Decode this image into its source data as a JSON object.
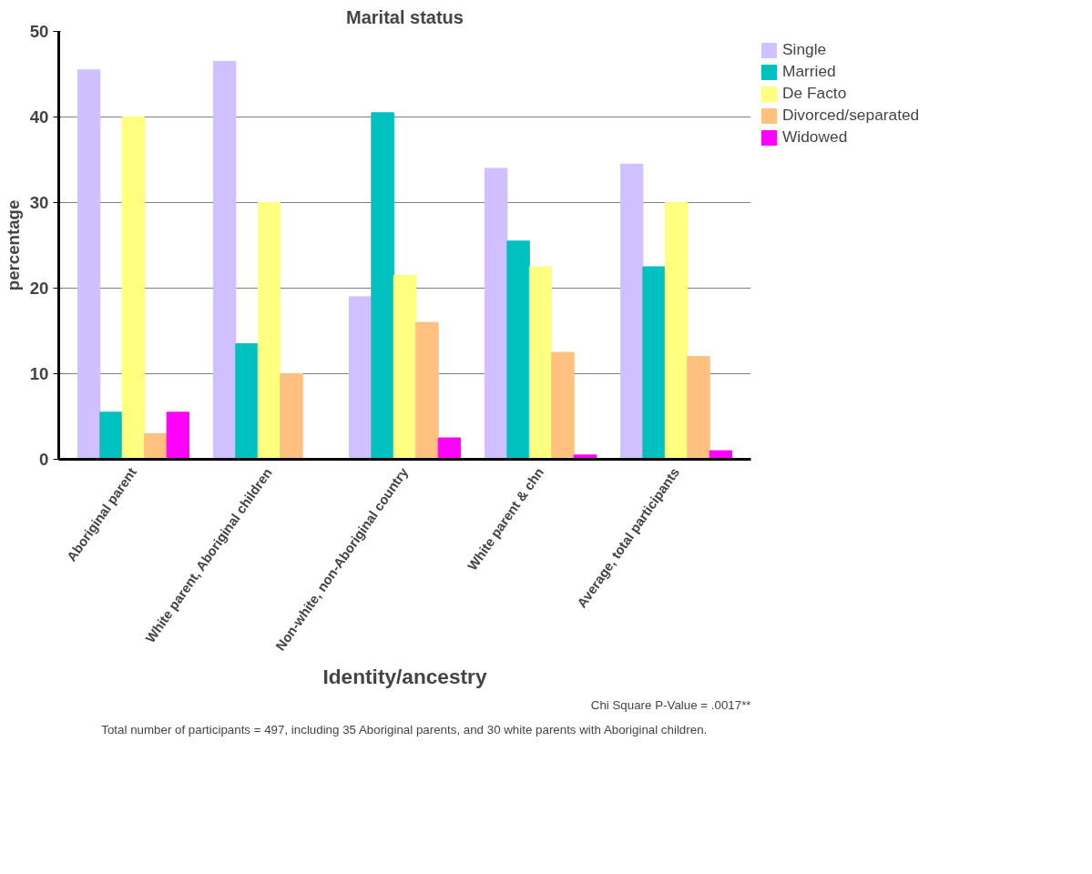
{
  "chart_data": {
    "type": "bar",
    "title": "Marital status",
    "xlabel": "Identity/ancestry",
    "ylabel": "percentage",
    "categories": [
      "Aboriginal parent",
      "White parent, Aboriginal children",
      "Non-white, non-Aboriginal country",
      "White parent & chn",
      "Average, total participants"
    ],
    "series": [
      {
        "name": "Single",
        "color": "#d0c0ff",
        "values": [
          45.5,
          46.5,
          19,
          34,
          34.5
        ]
      },
      {
        "name": "Married",
        "color": "#00c0c0",
        "values": [
          5.5,
          13.5,
          40.5,
          25.5,
          22.5
        ]
      },
      {
        "name": "De Facto",
        "color": "#ffff80",
        "values": [
          40,
          30,
          21.5,
          22.5,
          30
        ]
      },
      {
        "name": "Divorced/separated",
        "color": "#ffc080",
        "values": [
          3,
          10,
          16,
          12.5,
          12
        ]
      },
      {
        "name": "Widowed",
        "color": "#ff00ff",
        "values": [
          5.5,
          0,
          2.5,
          0.5,
          1
        ]
      }
    ],
    "ylim": [
      0,
      50
    ],
    "yticks": [
      0,
      10,
      20,
      30,
      40,
      50
    ],
    "grid": "y",
    "legend": "right",
    "annotations": [
      "Chi Square P-Value = .0017**",
      "Total number of participants = 497, including 35 Aboriginal parents, and 30 white parents with Aboriginal children."
    ]
  }
}
